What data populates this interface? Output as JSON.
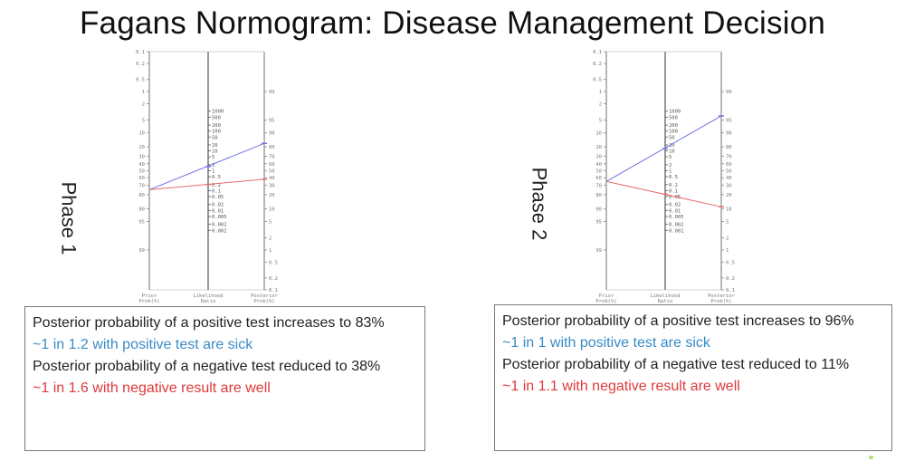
{
  "title": "Fagans Normogram: Disease Management Decision",
  "colors": {
    "positive": "#6f6fe6",
    "negative": "#e86b6b",
    "positive_text": "#3a8bc7",
    "negative_text": "#e0393b",
    "axis": "#888888"
  },
  "axis_labels": {
    "left": [
      "Prior",
      "Prob(%)"
    ],
    "middle": [
      "Likelihood",
      "Ratio"
    ],
    "right": [
      "Posterior",
      "Prob(%)"
    ]
  },
  "left_ticks": [
    "0.1",
    "0.2",
    "0.5",
    "1",
    "2",
    "5",
    "10",
    "20",
    "30",
    "40",
    "50",
    "60",
    "70",
    "80",
    "90",
    "95",
    "99"
  ],
  "middle_ticks": [
    "1000",
    "500",
    "200",
    "100",
    "50",
    "20",
    "10",
    "5",
    "2",
    "1",
    "0.5",
    "0.2",
    "0.1",
    "0.05",
    "0.02",
    "0.01",
    "0.005",
    "0.002",
    "0.001"
  ],
  "right_ticks": [
    "99",
    "95",
    "90",
    "80",
    "70",
    "60",
    "50",
    "40",
    "30",
    "20",
    "10",
    "5",
    "2",
    "1",
    "0.5",
    "0.2",
    "0.1"
  ],
  "panels": [
    {
      "phase_label": "Phase 1",
      "pretest_prob": 75,
      "positive_lr": 1.6,
      "negative_lr": 0.2,
      "posttest_positive": 83,
      "posttest_negative": 38,
      "lines": [
        {
          "text": "Posterior probability of a positive test increases to 83%",
          "style": "normal"
        },
        {
          "text": "~1 in 1.2 with positive test are sick",
          "style": "blue"
        },
        {
          "text": "Posterior probability of a negative test reduced to 38%",
          "style": "normal"
        },
        {
          "text": "~1 in 1.6 with negative result are well",
          "style": "red"
        }
      ]
    },
    {
      "phase_label": "Phase 2",
      "pretest_prob": 65,
      "positive_lr": 13,
      "negative_lr": 0.067,
      "posttest_positive": 96,
      "posttest_negative": 11,
      "lines": [
        {
          "text": "Posterior probability of a positive test increases to 96%",
          "style": "normal"
        },
        {
          "text": "~1 in 1 with positive test are sick",
          "style": "blue"
        },
        {
          "text": "Posterior probability of a negative test reduced to 11%",
          "style": "normal"
        },
        {
          "text": "~1 in 1.1 with negative result are well",
          "style": "red"
        }
      ]
    }
  ]
}
